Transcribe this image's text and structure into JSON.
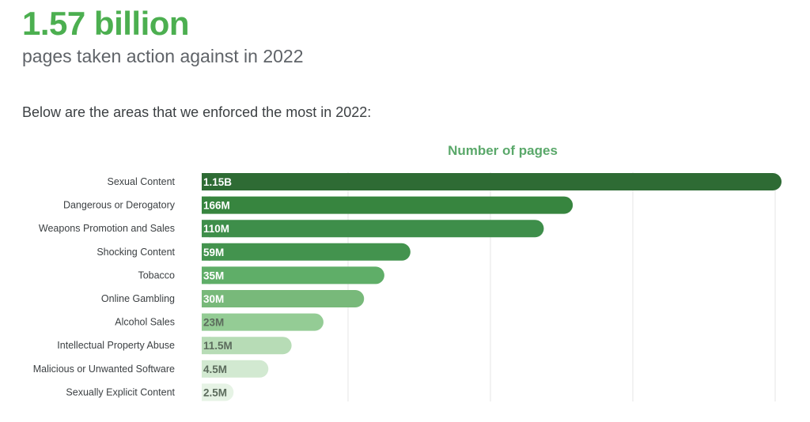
{
  "header": {
    "headline": "1.57 billion",
    "subheadline": "pages taken action against in 2022",
    "intro": "Below are the areas that we enforced the most in 2022:"
  },
  "chart_data": {
    "type": "bar",
    "orientation": "horizontal",
    "title": "Number of pages",
    "categories": [
      "Sexual Content",
      "Dangerous or Derogatory",
      "Weapons Promotion and Sales",
      "Shocking Content",
      "Tobacco",
      "Online Gambling",
      "Alcohol Sales",
      "Intellectual Property Abuse",
      "Malicious or Unwanted Software",
      "Sexually Explicit Content"
    ],
    "values": [
      1150000000,
      166000000,
      110000000,
      59000000,
      35000000,
      30000000,
      23000000,
      11500000,
      4500000,
      2500000
    ],
    "value_labels": [
      "1.15B",
      "166M",
      "110M",
      "59M",
      "35M",
      "30M",
      "23M",
      "11.5M",
      "4.5M",
      "2.5M"
    ],
    "bar_display_fraction": [
      1.0,
      0.64,
      0.59,
      0.36,
      0.315,
      0.28,
      0.21,
      0.155,
      0.115,
      0.055
    ],
    "colors": [
      "#2e6b34",
      "#37853f",
      "#3e8e4a",
      "#43934e",
      "#5fae68",
      "#78b97a",
      "#94cc95",
      "#b7dcb6",
      "#d2e9d1",
      "#e6f3e5"
    ],
    "label_colors": [
      "#ffffff",
      "#ffffff",
      "#ffffff",
      "#ffffff",
      "#ffffff",
      "#ffffff",
      "#5b6b5c",
      "#5b6b5c",
      "#5b6b5c",
      "#5b6b5c"
    ],
    "grid": true,
    "legend": "none"
  }
}
